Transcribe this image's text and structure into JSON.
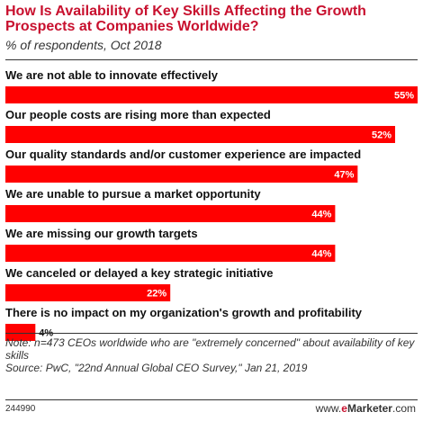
{
  "header": {
    "title": "How Is Availability of Key Skills Affecting the Growth Prospects at Companies Worldwide?",
    "subtitle": "% of respondents, Oct 2018"
  },
  "chart_data": {
    "type": "bar",
    "orientation": "horizontal",
    "categories": [
      "We are not able to innovate effectively",
      "Our people costs are rising more than expected",
      "Our quality standards and/or customer experience are impacted",
      "We are unable to pursue a market opportunity",
      "We are missing our growth targets",
      "We canceled or delayed a key strategic initiative",
      "There is no impact on my organization's growth and profitability"
    ],
    "values": [
      55,
      52,
      47,
      44,
      44,
      22,
      4
    ],
    "value_labels": [
      "55%",
      "52%",
      "47%",
      "44%",
      "44%",
      "22%",
      "4%"
    ],
    "unit": "%",
    "xlim": [
      0,
      55
    ],
    "grid": false,
    "legend": "none",
    "bar_color": "#ff0000"
  },
  "footer": {
    "note": "Note: n=473 CEOs worldwide who are \"extremely concerned\" about availability of key skills",
    "source": "Source: PwC, \"22nd Annual Global CEO Survey,\" Jan 21, 2019",
    "chart_id": "244990",
    "brand_prefix": "www.",
    "brand_e": "e",
    "brand_rest": "Marketer",
    "brand_suffix": ".com"
  }
}
